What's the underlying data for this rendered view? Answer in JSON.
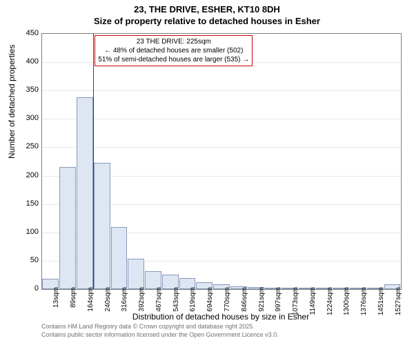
{
  "title": "23, THE DRIVE, ESHER, KT10 8DH",
  "subtitle": "Size of property relative to detached houses in Esher",
  "chart": {
    "type": "histogram",
    "y_label": "Number of detached properties",
    "x_label": "Distribution of detached houses by size in Esher",
    "ylim": [
      0,
      450
    ],
    "ytick_step": 50,
    "bar_fill": "#dde6f2",
    "bar_stroke": "#8899bb",
    "grid_color": "#e8e8e8",
    "background_color": "#ffffff",
    "x_categories": [
      "13sqm",
      "89sqm",
      "164sqm",
      "240sqm",
      "316sqm",
      "392sqm",
      "467sqm",
      "543sqm",
      "619sqm",
      "694sqm",
      "770sqm",
      "846sqm",
      "921sqm",
      "997sqm",
      "1073sqm",
      "1149sqm",
      "1224sqm",
      "1300sqm",
      "1376sqm",
      "1451sqm",
      "1527sqm"
    ],
    "bar_values": [
      18,
      215,
      338,
      222,
      110,
      53,
      32,
      26,
      20,
      12,
      8,
      5,
      4,
      3,
      3,
      2,
      2,
      0,
      0,
      0,
      8
    ],
    "bar_count": 21,
    "marker_bin_index": 3,
    "marker_color": "#cc0000",
    "annotation": {
      "line1": "23 THE DRIVE: 225sqm",
      "line2": "← 48% of detached houses are smaller (502)",
      "line3": "51% of semi-detached houses are larger (535) →"
    }
  },
  "footer": {
    "line1": "Contains HM Land Registry data © Crown copyright and database right 2025.",
    "line2": "Contains public sector information licensed under the Open Government Licence v3.0."
  }
}
